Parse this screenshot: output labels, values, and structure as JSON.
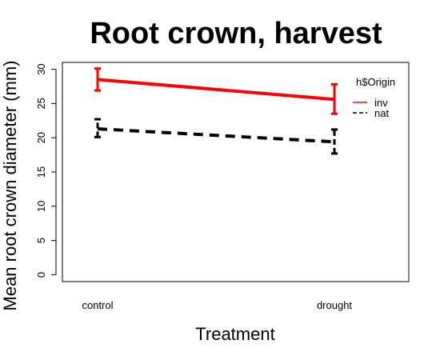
{
  "chart_data": {
    "type": "line",
    "title": "Root crown, harvest",
    "xlabel": "Treatment",
    "ylabel": "Mean root crown diameter (mm)",
    "categories": [
      "control",
      "drought"
    ],
    "ylim": [
      -1,
      31
    ],
    "yticks": [
      0,
      5,
      10,
      15,
      20,
      25,
      30
    ],
    "grid": false,
    "legend": {
      "title": "h$Origin",
      "placement": "top-right"
    },
    "series": [
      {
        "name": "inv",
        "color": "#ff0000",
        "line_style": "solid",
        "values": [
          28.5,
          25.6
        ],
        "error_low": [
          26.9,
          23.5
        ],
        "error_high": [
          30.1,
          27.8
        ]
      },
      {
        "name": "nat",
        "color": "#000000",
        "line_style": "dashed",
        "values": [
          21.3,
          19.4
        ],
        "error_low": [
          20.1,
          17.7
        ],
        "error_high": [
          22.7,
          21.2
        ]
      }
    ]
  }
}
